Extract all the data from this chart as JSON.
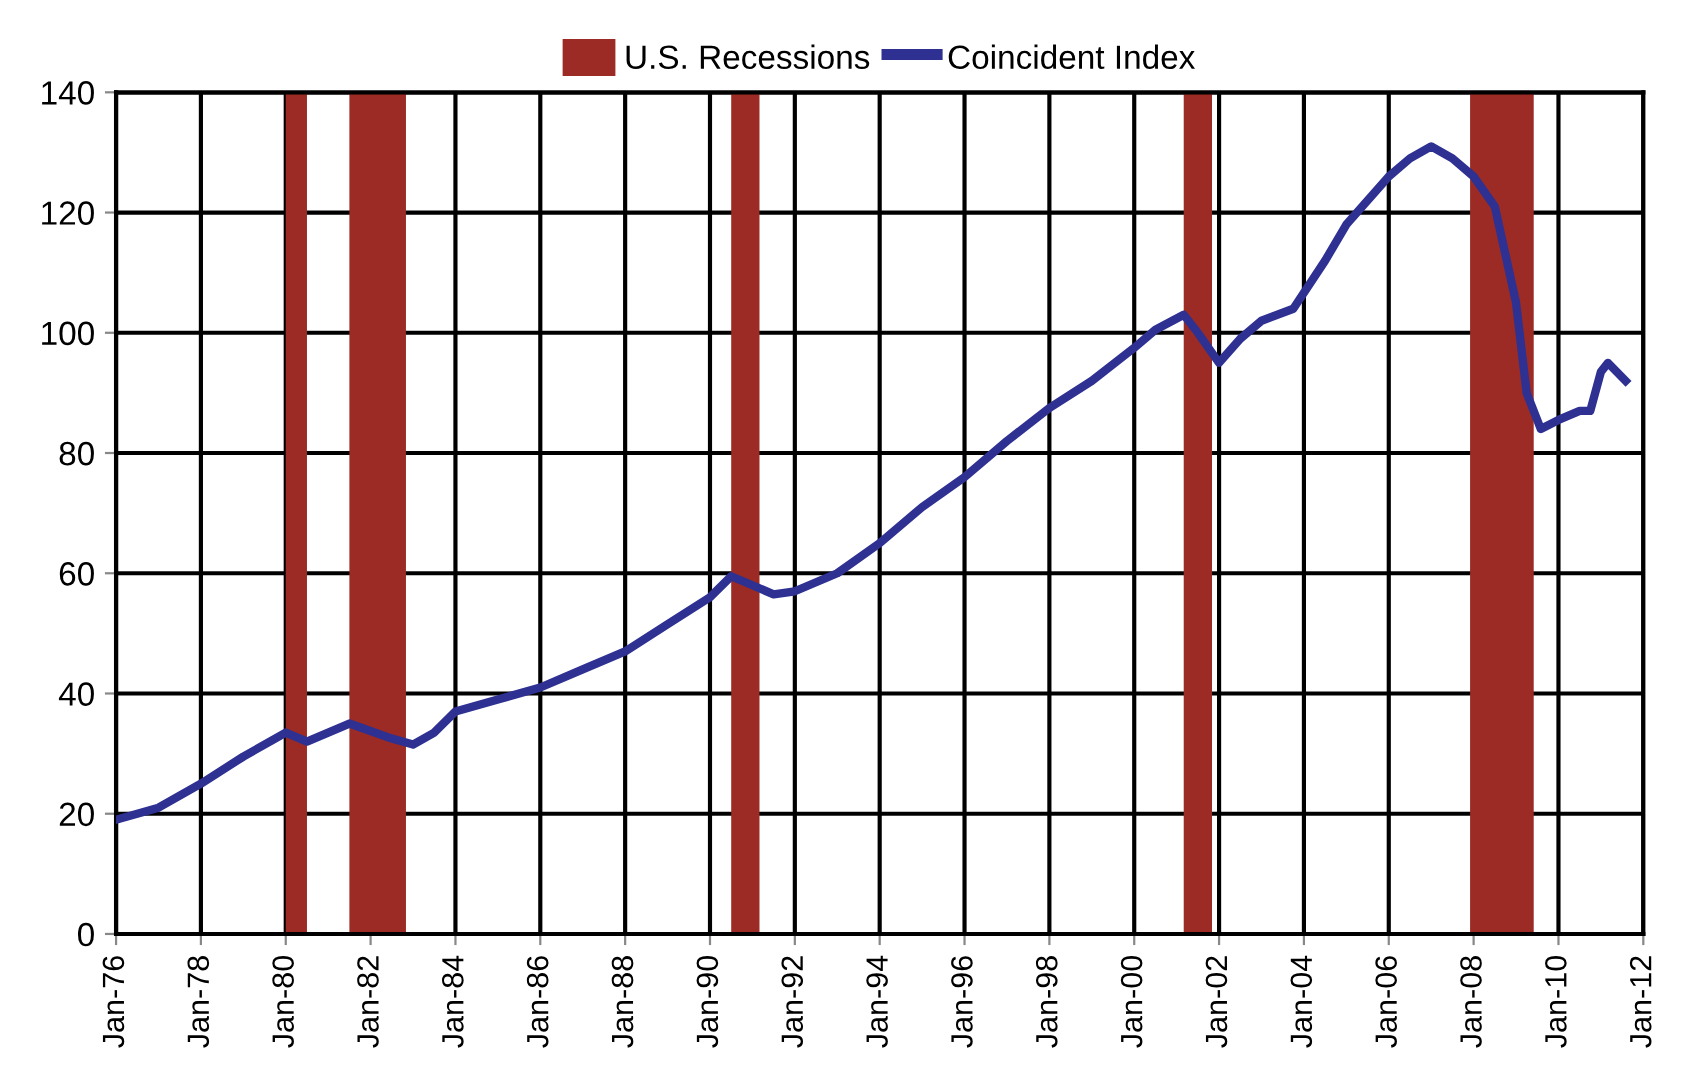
{
  "chart_data": {
    "type": "line",
    "x": [
      "1976-01",
      "1977-01",
      "1978-01",
      "1979-01",
      "1980-01",
      "1980-07",
      "1981-07",
      "1982-07",
      "1983-01",
      "1983-07",
      "1984-01",
      "1985-01",
      "1986-01",
      "1987-01",
      "1988-01",
      "1989-01",
      "1990-01",
      "1990-07",
      "1991-01",
      "1991-07",
      "1992-01",
      "1993-01",
      "1994-01",
      "1995-01",
      "1996-01",
      "1997-01",
      "1998-01",
      "1999-01",
      "2000-01",
      "2000-07",
      "2001-03",
      "2001-07",
      "2002-01",
      "2002-07",
      "2003-01",
      "2003-10",
      "2004-07",
      "2005-01",
      "2005-07",
      "2006-01",
      "2006-07",
      "2007-01",
      "2007-07",
      "2008-01",
      "2008-07",
      "2009-01",
      "2009-04",
      "2009-08",
      "2010-01",
      "2010-07",
      "2010-10",
      "2011-01",
      "2011-03",
      "2011-08"
    ],
    "series": [
      {
        "name": "Coincident Index",
        "color": "#2e3192",
        "values": [
          19,
          21,
          25,
          29.5,
          33.5,
          32,
          35,
          32.5,
          31.5,
          33.5,
          37,
          39,
          41,
          44,
          47,
          51.5,
          56,
          59.5,
          58,
          56.5,
          57,
          60,
          65,
          71,
          76,
          82,
          87.5,
          92,
          97.5,
          100.5,
          103,
          100,
          95,
          99,
          102,
          104,
          112,
          118,
          122,
          126,
          129,
          131,
          129,
          126,
          121,
          105,
          90,
          84,
          85.5,
          87,
          87,
          93.5,
          95,
          92
        ]
      }
    ],
    "bands": [
      {
        "axis": "x",
        "from": "1980-01",
        "to": "1980-07",
        "label": "U.S. Recessions",
        "color": "#9b2b24"
      },
      {
        "axis": "x",
        "from": "1981-07",
        "to": "1982-11",
        "color": "#9b2b24"
      },
      {
        "axis": "x",
        "from": "1990-07",
        "to": "1991-03",
        "color": "#9b2b24"
      },
      {
        "axis": "x",
        "from": "2001-03",
        "to": "2001-11",
        "color": "#9b2b24"
      },
      {
        "axis": "x",
        "from": "2007-12",
        "to": "2009-06",
        "color": "#9b2b24"
      }
    ],
    "xlim": [
      "1976-01",
      "2012-01"
    ],
    "xticks": [
      {
        "value": "1976-01",
        "label": "Jan-76"
      },
      {
        "value": "1978-01",
        "label": "Jan-78"
      },
      {
        "value": "1980-01",
        "label": "Jan-80"
      },
      {
        "value": "1982-01",
        "label": "Jan-82"
      },
      {
        "value": "1984-01",
        "label": "Jan-84"
      },
      {
        "value": "1986-01",
        "label": "Jan-86"
      },
      {
        "value": "1988-01",
        "label": "Jan-88"
      },
      {
        "value": "1990-01",
        "label": "Jan-90"
      },
      {
        "value": "1992-01",
        "label": "Jan-92"
      },
      {
        "value": "1994-01",
        "label": "Jan-94"
      },
      {
        "value": "1996-01",
        "label": "Jan-96"
      },
      {
        "value": "1998-01",
        "label": "Jan-98"
      },
      {
        "value": "2000-01",
        "label": "Jan-00"
      },
      {
        "value": "2002-01",
        "label": "Jan-02"
      },
      {
        "value": "2004-01",
        "label": "Jan-04"
      },
      {
        "value": "2006-01",
        "label": "Jan-06"
      },
      {
        "value": "2008-01",
        "label": "Jan-08"
      },
      {
        "value": "2010-01",
        "label": "Jan-10"
      },
      {
        "value": "2012-01",
        "label": "Jan-12"
      }
    ],
    "ylim": [
      0,
      140
    ],
    "yticks": [
      0,
      20,
      40,
      60,
      80,
      100,
      120,
      140
    ],
    "grid": true,
    "legend": "top",
    "line_style": "solid",
    "marker": "none"
  }
}
